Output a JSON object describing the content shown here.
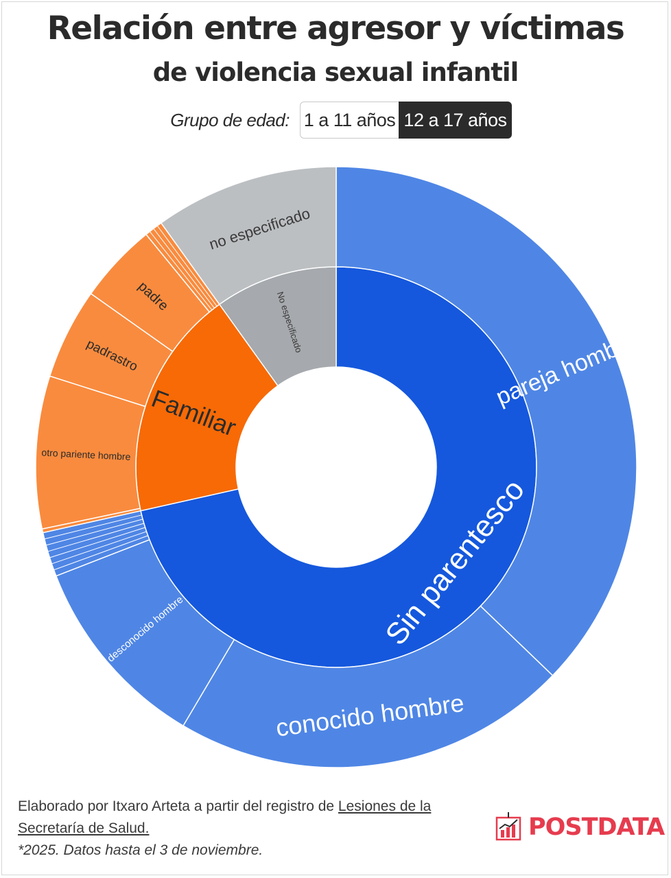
{
  "title": "Relación entre agresor y víctimas",
  "subtitle": "de violencia sexual infantil",
  "age_group": {
    "label": "Grupo de edad:",
    "options": [
      "1 a 11 años",
      "12 a 17 años"
    ],
    "selected": "12 a 17 años"
  },
  "chart_data": {
    "type": "sunburst",
    "note": "values are estimated shares (%) of the 12 a 17 años group",
    "inner": [
      {
        "name": "Sin parentesco",
        "value": 71.5,
        "color": "#1558dd"
      },
      {
        "name": "Familiar",
        "value": 18.6,
        "color": "#f76a06"
      },
      {
        "name": "No especificado",
        "value": 9.9,
        "color": "#a6a9ad"
      }
    ],
    "outer": [
      {
        "name": "pareja hombre",
        "parent": "Sin parentesco",
        "value": 37.2,
        "color": "#4f86e5"
      },
      {
        "name": "conocido hombre",
        "parent": "Sin parentesco",
        "value": 21.3,
        "color": "#4f86e5"
      },
      {
        "name": "desconocido hombre",
        "parent": "Sin parentesco",
        "value": 10.6,
        "color": "#4f86e5"
      },
      {
        "name": "",
        "parent": "Sin parentesco",
        "value": 2.4,
        "color": "#4f86e5"
      },
      {
        "name": "",
        "parent": "Familiar",
        "value": 0.2,
        "color": "#f98b3e"
      },
      {
        "name": "otro pariente hombre",
        "parent": "Familiar",
        "value": 8.2,
        "color": "#f98b3e"
      },
      {
        "name": "padrastro",
        "parent": "Familiar",
        "value": 4.9,
        "color": "#f98b3e"
      },
      {
        "name": "padre",
        "parent": "Familiar",
        "value": 4.3,
        "color": "#f98b3e"
      },
      {
        "name": "",
        "parent": "Familiar",
        "value": 1.0,
        "color": "#f98b3e"
      },
      {
        "name": "no especificado",
        "parent": "No especificado",
        "value": 9.9,
        "color": "#bcbfc2"
      }
    ]
  },
  "footer": {
    "credit_prefix": "Elaborado por Itxaro Arteta a partir del registro de ",
    "credit_source": "Lesiones de la Secretaría de Salud.",
    "note": "*2025. Datos hasta el 3 de noviembre."
  },
  "logo": {
    "text": "POSTDATA",
    "color": "#e63c4e"
  }
}
